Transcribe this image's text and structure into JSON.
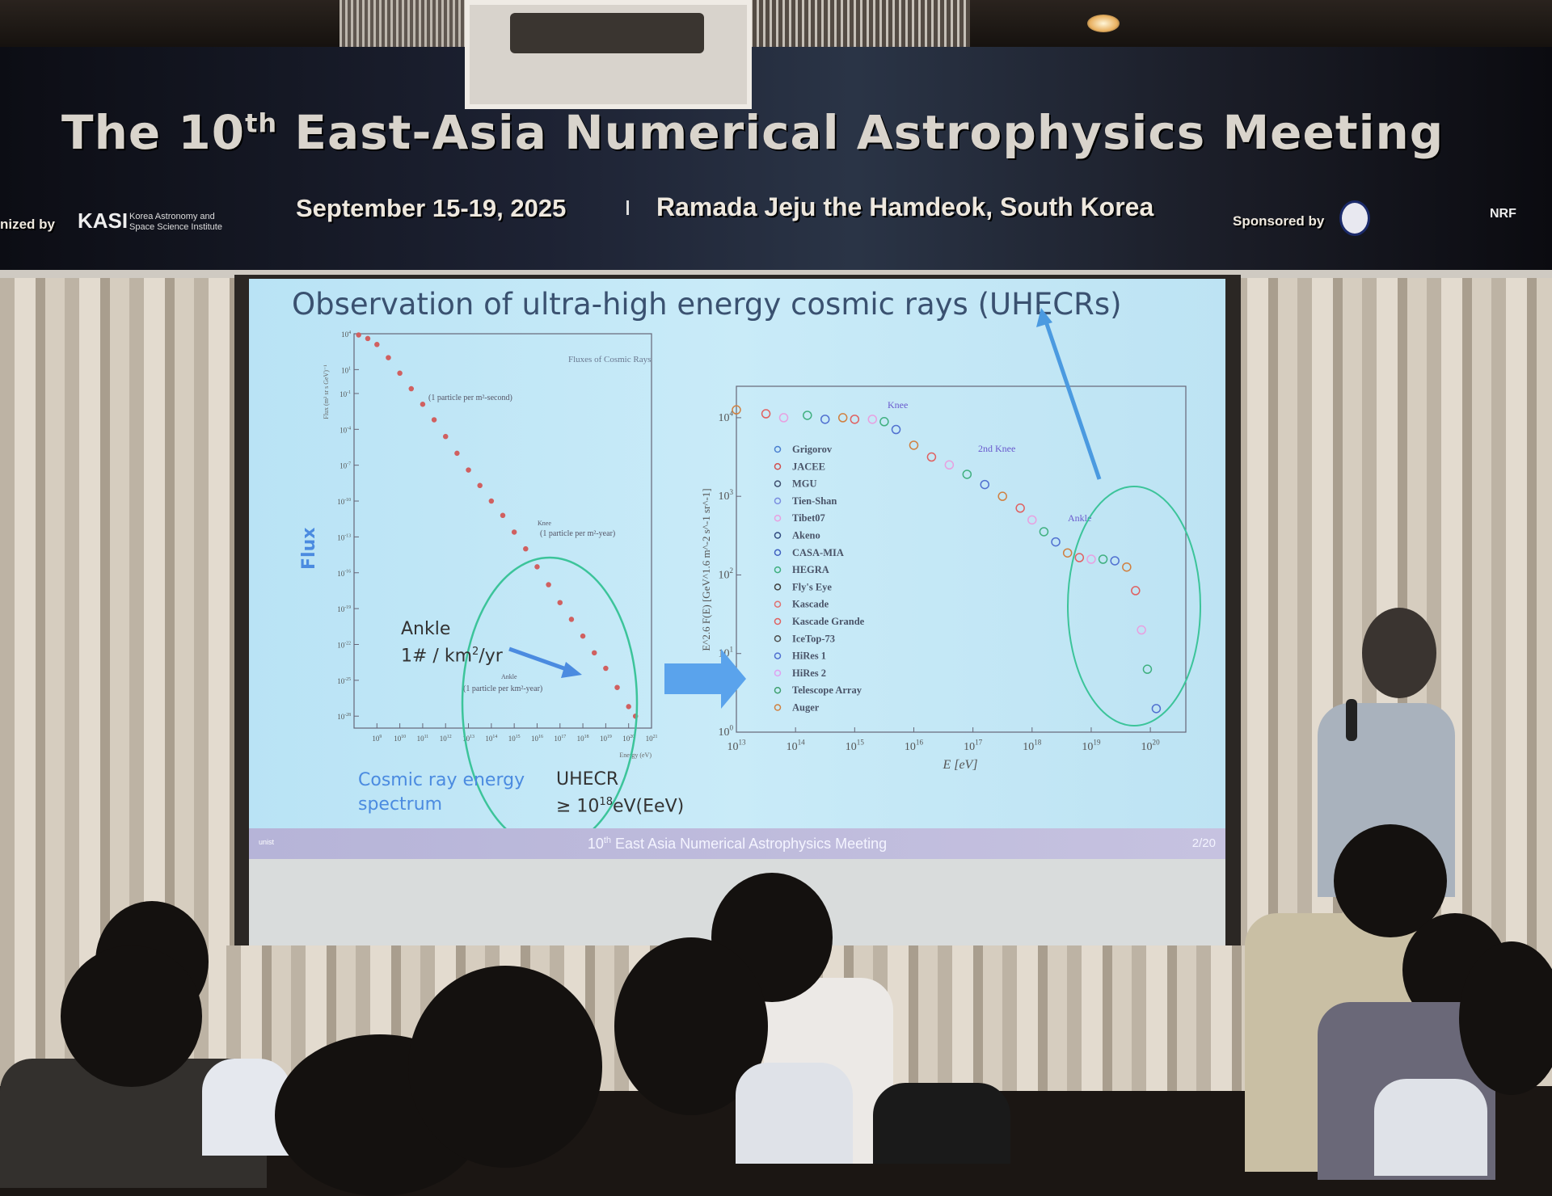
{
  "banner": {
    "title_prefix": "The 10",
    "title_sup": "th",
    "title_rest": " East-Asia Numerical Astrophysics Meeting",
    "organized_by": "nized by",
    "organizer_logo": "KASI",
    "organizer_name": "Korea Astronomy and Space Science Institute",
    "date": "September 15-19, 2025",
    "venue": "Ramada Jeju the Hamdeok, South Korea",
    "sponsored_by": "Sponsored by",
    "sponsor_logo": "NRF"
  },
  "slide": {
    "title": "Observation of ultra-high energy cosmic rays (UHECRs)",
    "flux_label": "Flux",
    "cr_energy_label": "Cosmic ray energy spectrum",
    "uhecr_label": "UHECR",
    "uhecr_threshold_prefix": "≥ 10",
    "uhecr_threshold_sup": "18",
    "uhecr_threshold_suffix": "eV(EeV)",
    "ankle_label": "Ankle",
    "ankle_rate_prefix": "1# / km",
    "ankle_rate_sup": "2",
    "ankle_rate_suffix": "/yr",
    "footer_prefix": "10",
    "footer_sup": "th",
    "footer_rest": " East Asia Numerical Astrophysics Meeting",
    "footer_logo": "unist",
    "page": "2/20",
    "accent": "#4b8be0",
    "ellipse_color": "#3cc49a"
  },
  "chart_data": [
    {
      "type": "scatter",
      "title": "Fluxes of Cosmic Rays",
      "xlabel": "Energy (eV)",
      "ylabel": "Flux (m² sr s GeV)⁻¹",
      "xscale": "log",
      "yscale": "log",
      "xlim_exp": [
        8,
        21
      ],
      "ylim_exp": [
        -29,
        4
      ],
      "x_tick_exps": [
        9,
        10,
        11,
        12,
        13,
        14,
        15,
        16,
        17,
        18,
        19,
        20,
        21
      ],
      "y_tick_exps": [
        4,
        1,
        -1,
        -4,
        -7,
        -10,
        -13,
        -16,
        -19,
        -22,
        -25,
        -28
      ],
      "points_log": [
        [
          8.2,
          3.9
        ],
        [
          8.6,
          3.6
        ],
        [
          9,
          3.1
        ],
        [
          9.5,
          2.0
        ],
        [
          10,
          0.7
        ],
        [
          10.5,
          -0.6
        ],
        [
          11,
          -1.9
        ],
        [
          11.5,
          -3.2
        ],
        [
          12,
          -4.6
        ],
        [
          12.5,
          -6.0
        ],
        [
          13,
          -7.4
        ],
        [
          13.5,
          -8.7
        ],
        [
          14,
          -10.0
        ],
        [
          14.5,
          -11.2
        ],
        [
          15,
          -12.6
        ],
        [
          15.5,
          -14.0
        ],
        [
          16,
          -15.5
        ],
        [
          16.5,
          -17.0
        ],
        [
          17,
          -18.5
        ],
        [
          17.5,
          -19.9
        ],
        [
          18,
          -21.3
        ],
        [
          18.5,
          -22.7
        ],
        [
          19,
          -24.0
        ],
        [
          19.5,
          -25.6
        ],
        [
          20,
          -27.2
        ],
        [
          20.3,
          -28.0
        ]
      ],
      "annotations": [
        "(1 particle per m²-second)",
        "Knee",
        "(1 particle per m²-year)",
        "Ankle",
        "(1 particle per km²-year)"
      ]
    },
    {
      "type": "scatter",
      "title": "",
      "xlabel": "E [eV]",
      "ylabel": "E^2.6 F(E) [GeV^1.6 m^-2 s^-1 sr^-1]",
      "xscale": "log",
      "yscale": "log",
      "xlim_exp": [
        13,
        20.6
      ],
      "ylim_exp": [
        0,
        4.4
      ],
      "x_tick_exps": [
        13,
        14,
        15,
        16,
        17,
        18,
        19,
        20
      ],
      "y_tick_exps": [
        0,
        1,
        2,
        3,
        4
      ],
      "annotations": [
        "Knee",
        "2nd Knee",
        "Ankle"
      ],
      "series": [
        {
          "name": "Grigorov",
          "color": "#4a7fd0",
          "marker": "triangle-up"
        },
        {
          "name": "JACEE",
          "color": "#d05050",
          "marker": "triangle-down"
        },
        {
          "name": "MGU",
          "color": "#405070",
          "marker": "triangle-down"
        },
        {
          "name": "Tien-Shan",
          "color": "#7a8de0",
          "marker": "diamond"
        },
        {
          "name": "Tibet07",
          "color": "#e8a0e0",
          "marker": "circle"
        },
        {
          "name": "Akeno",
          "color": "#304a80",
          "marker": "circle"
        },
        {
          "name": "CASA-MIA",
          "color": "#4060c0",
          "marker": "square"
        },
        {
          "name": "HEGRA",
          "color": "#40b080",
          "marker": "diamond"
        },
        {
          "name": "Fly's Eye",
          "color": "#404040",
          "marker": "star"
        },
        {
          "name": "Kascade",
          "color": "#e07070",
          "marker": "square"
        },
        {
          "name": "Kascade Grande",
          "color": "#e06060",
          "marker": "circle"
        },
        {
          "name": "IceTop-73",
          "color": "#505050",
          "marker": "diamond"
        },
        {
          "name": "HiRes 1",
          "color": "#5070d0",
          "marker": "square"
        },
        {
          "name": "HiRes 2",
          "color": "#e0a0f0",
          "marker": "diamond"
        },
        {
          "name": "Telescope Array",
          "color": "#40a070",
          "marker": "star"
        },
        {
          "name": "Auger",
          "color": "#d08040",
          "marker": "circle"
        }
      ],
      "points_log": [
        [
          13.0,
          4.1
        ],
        [
          13.5,
          4.05
        ],
        [
          13.8,
          4.0
        ],
        [
          14.2,
          4.03
        ],
        [
          14.5,
          3.98
        ],
        [
          14.8,
          4.0
        ],
        [
          15.0,
          3.98
        ],
        [
          15.3,
          3.98
        ],
        [
          15.5,
          3.95
        ],
        [
          15.7,
          3.85
        ],
        [
          16.0,
          3.65
        ],
        [
          16.3,
          3.5
        ],
        [
          16.6,
          3.4
        ],
        [
          16.9,
          3.28
        ],
        [
          17.2,
          3.15
        ],
        [
          17.5,
          3.0
        ],
        [
          17.8,
          2.85
        ],
        [
          18.0,
          2.7
        ],
        [
          18.2,
          2.55
        ],
        [
          18.4,
          2.42
        ],
        [
          18.6,
          2.28
        ],
        [
          18.8,
          2.22
        ],
        [
          19.0,
          2.2
        ],
        [
          19.2,
          2.2
        ],
        [
          19.4,
          2.18
        ],
        [
          19.6,
          2.1
        ],
        [
          19.75,
          1.8
        ],
        [
          19.85,
          1.3
        ],
        [
          19.95,
          0.8
        ],
        [
          20.1,
          0.3
        ]
      ]
    }
  ]
}
